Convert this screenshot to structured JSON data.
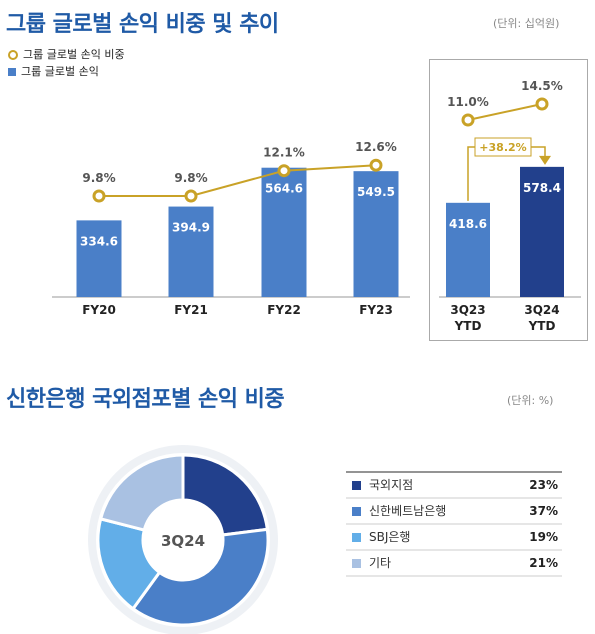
{
  "section1": {
    "title": "그룹 글로벌 손익 비중 및 추이",
    "unit": "(단위: 십억원)",
    "legend_line": "그룹 글로벌 손익 비중",
    "legend_bar": "그룹 글로벌 손익"
  },
  "section2": {
    "title": "신한은행 국외점포별 손익 비중",
    "unit": "(단위: %)",
    "center_label": "3Q24"
  },
  "colors": {
    "bar": "#4a7fc8",
    "bar_highlight": "#22408c",
    "line": "#c9a227",
    "title": "#1f5aa6"
  },
  "chart_data": [
    {
      "type": "bar",
      "categories": [
        "FY20",
        "FY21",
        "FY22",
        "FY23"
      ],
      "series": [
        {
          "name": "그룹 글로벌 손익",
          "values": [
            334.6,
            394.9,
            564.6,
            549.5
          ],
          "labels": [
            "334.6",
            "394.9",
            "564.6",
            "549.5"
          ]
        },
        {
          "name": "그룹 글로벌 손익 비중",
          "type": "line",
          "values": [
            9.8,
            9.8,
            12.1,
            12.6
          ],
          "labels": [
            "9.8%",
            "9.8%",
            "12.1%",
            "12.6%"
          ]
        }
      ]
    },
    {
      "type": "bar",
      "categories": [
        "3Q23 YTD",
        "3Q24 YTD"
      ],
      "category_lines": [
        [
          "3Q23",
          "YTD"
        ],
        [
          "3Q24",
          "YTD"
        ]
      ],
      "series": [
        {
          "name": "그룹 글로벌 손익",
          "values": [
            418.6,
            578.4
          ],
          "labels": [
            "418.6",
            "578.4"
          ]
        },
        {
          "name": "그룹 글로벌 손익 비중",
          "type": "line",
          "values": [
            11.0,
            14.5
          ],
          "labels": [
            "11.0%",
            "14.5%"
          ]
        }
      ],
      "annotation": "+38.2%"
    },
    {
      "type": "pie",
      "center_label": "3Q24",
      "slices": [
        {
          "label": "국외지점",
          "value": 23,
          "value_label": "23%",
          "color": "#22408c"
        },
        {
          "label": "신한베트남은행",
          "value": 37,
          "value_label": "37%",
          "color": "#4a7fc8"
        },
        {
          "label": "SBJ은행",
          "value": 19,
          "value_label": "19%",
          "color": "#62aee8"
        },
        {
          "label": "기타",
          "value": 21,
          "value_label": "21%",
          "color": "#a9c1e2"
        }
      ]
    }
  ]
}
